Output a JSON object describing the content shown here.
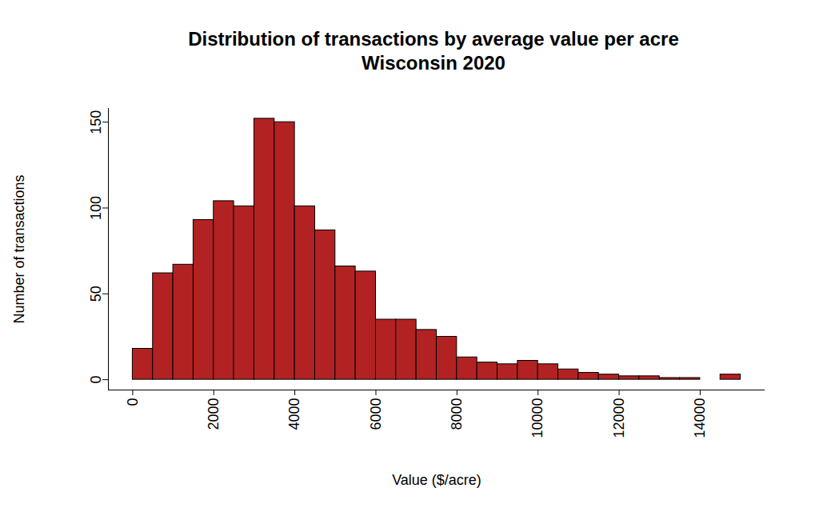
{
  "chart_data": {
    "type": "histogram",
    "title": "Distribution of transactions by average value per acre",
    "subtitle": "Wisconsin 2020",
    "x_label": "Value ($/acre)",
    "y_label": "Number of transactions",
    "bins": [
      0,
      500,
      1000,
      1500,
      2000,
      2500,
      3000,
      3500,
      4000,
      4500,
      5000,
      5500,
      6000,
      6500,
      7000,
      7500,
      8000,
      8500,
      9000,
      9500,
      10000,
      10500,
      11000,
      11500,
      12000,
      12500,
      13000,
      13500,
      14000,
      14500,
      15000
    ],
    "values": [
      18,
      62,
      67,
      93,
      104,
      101,
      152,
      150,
      101,
      87,
      66,
      63,
      35,
      35,
      29,
      25,
      13,
      10,
      9,
      11,
      9,
      6,
      4,
      3,
      2,
      2,
      1,
      1,
      0,
      3
    ],
    "color": "#b22222",
    "xlim": [
      -600,
      15600
    ],
    "xticks": [
      0,
      2000,
      4000,
      6000,
      8000,
      10000,
      12000,
      14000
    ],
    "ylim": [
      -6,
      158
    ],
    "yticks": [
      0,
      50,
      100,
      150
    ],
    "grid": false
  }
}
